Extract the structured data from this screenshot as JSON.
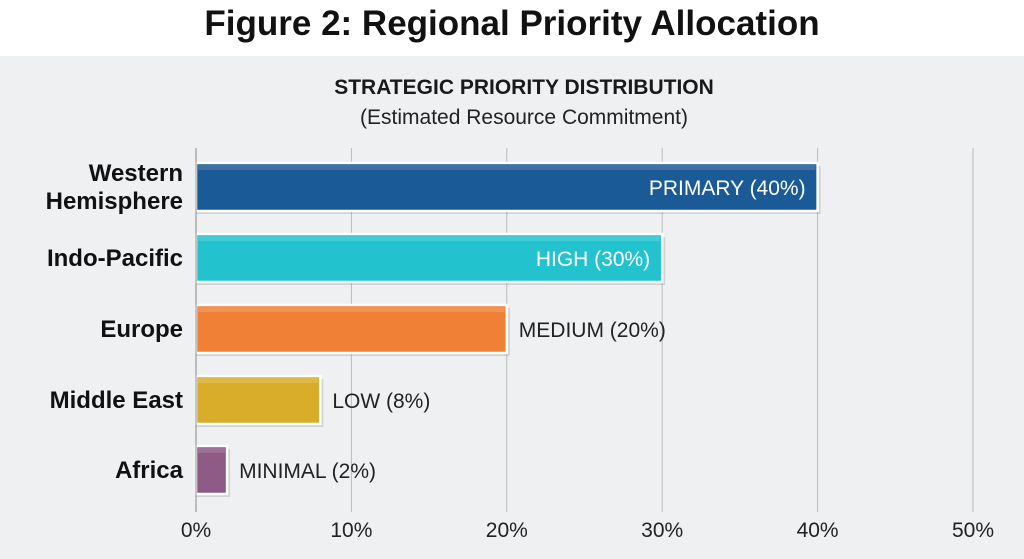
{
  "chart_data": {
    "type": "bar",
    "orientation": "horizontal",
    "title": "Figure 2: Regional Priority Allocation",
    "subtitle": "STRATEGIC PRIORITY DISTRIBUTION",
    "subtitle2": "(Estimated Resource Commitment)",
    "categories": [
      "Western Hemisphere",
      "Indo-Pacific",
      "Europe",
      "Middle East",
      "Africa"
    ],
    "values": [
      40,
      30,
      20,
      8,
      2
    ],
    "data_labels": [
      "PRIMARY (40%)",
      "HIGH (30%)",
      "MEDIUM (20%)",
      "LOW (8%)",
      "MINIMAL (2%)"
    ],
    "colors": [
      "#1a5a96",
      "#22c3cf",
      "#f08035",
      "#d9ad2a",
      "#8e5a86"
    ],
    "xlim": [
      0,
      50
    ],
    "xticks": [
      0,
      10,
      20,
      30,
      40,
      50
    ],
    "xtick_labels": [
      "0%",
      "10%",
      "20%",
      "30%",
      "40%",
      "50%"
    ],
    "grid": true,
    "xlabel": "",
    "ylabel": ""
  }
}
